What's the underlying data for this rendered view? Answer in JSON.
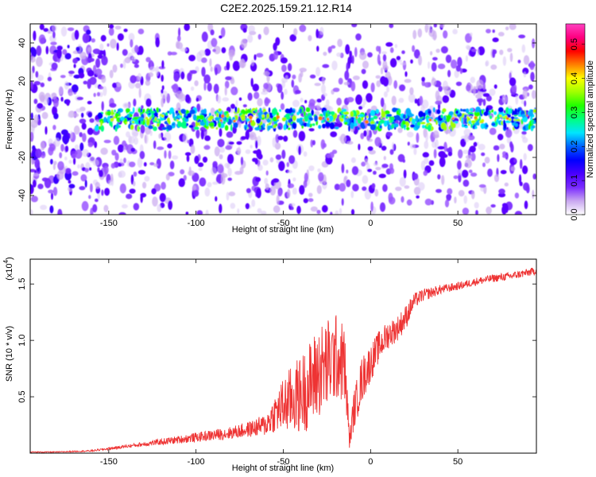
{
  "title": "C2E2.2025.159.21.12.R14",
  "chart_data": [
    {
      "type": "heatmap",
      "xlabel": "Height of straight line (km)",
      "ylabel": "Frequency (Hz)",
      "xlim": [
        -195,
        95
      ],
      "ylim": [
        -50,
        50
      ],
      "xticks": [
        -150,
        -100,
        -50,
        0,
        50
      ],
      "yticks": [
        -40,
        -20,
        0,
        20,
        40
      ],
      "colorbar": {
        "label": "Normalized spectral amplitude",
        "range": [
          0,
          0.56
        ],
        "ticks": [
          "0.0",
          "0.1",
          "0.2",
          "0.3",
          "0.4",
          "0.5"
        ],
        "colors": [
          "#ffffff",
          "#c9a8f0",
          "#7a2bff",
          "#4a00ff",
          "#0000ff",
          "#0060ff",
          "#00e5ff",
          "#00ff80",
          "#20ff00",
          "#a0ff00",
          "#ffff00",
          "#ff8000",
          "#ff0000",
          "#ff0080",
          "#ff40c0"
        ]
      },
      "description_bands": [
        {
          "y": 0,
          "x_from": -157,
          "x_to": 95,
          "level": "strong"
        }
      ]
    },
    {
      "type": "line",
      "xlabel": "Height of straight line (km)",
      "ylabel": "SNR (10 * v/v)",
      "y_multiplier": "(x10",
      "y_multiplier_exp": "4",
      "y_multiplier_close": ")",
      "xlim": [
        -195,
        95
      ],
      "ylim": [
        0,
        1.72
      ],
      "xticks": [
        -150,
        -100,
        -50,
        0,
        50
      ],
      "yticks": [
        0.5,
        1.0,
        1.5
      ],
      "ytick_labels": [
        "0.5",
        "1.0",
        "1.5"
      ],
      "series": [
        {
          "color": "#ee3333",
          "x": [
            -195,
            -180,
            -160,
            -150,
            -140,
            -130,
            -120,
            -110,
            -100,
            -90,
            -80,
            -70,
            -60,
            -55,
            -50,
            -45,
            -40,
            -35,
            -30,
            -25,
            -20,
            -15,
            -12,
            -10,
            -5,
            0,
            5,
            10,
            15,
            20,
            25,
            30,
            40,
            50,
            60,
            70,
            80,
            90,
            95
          ],
          "y": [
            0.01,
            0.01,
            0.02,
            0.04,
            0.06,
            0.08,
            0.1,
            0.12,
            0.14,
            0.16,
            0.18,
            0.21,
            0.25,
            0.35,
            0.42,
            0.48,
            0.52,
            0.6,
            0.72,
            0.78,
            0.85,
            0.8,
            0.1,
            0.35,
            0.65,
            0.8,
            0.95,
            1.05,
            1.1,
            1.2,
            1.35,
            1.4,
            1.45,
            1.48,
            1.52,
            1.55,
            1.57,
            1.6,
            1.62
          ],
          "noise": [
            0.003,
            0.003,
            0.005,
            0.008,
            0.01,
            0.015,
            0.02,
            0.025,
            0.03,
            0.035,
            0.04,
            0.05,
            0.07,
            0.12,
            0.18,
            0.22,
            0.25,
            0.28,
            0.3,
            0.3,
            0.28,
            0.25,
            0.05,
            0.12,
            0.15,
            0.12,
            0.1,
            0.09,
            0.08,
            0.08,
            0.05,
            0.04,
            0.03,
            0.025,
            0.025,
            0.025,
            0.025,
            0.025,
            0.025
          ]
        }
      ]
    }
  ]
}
